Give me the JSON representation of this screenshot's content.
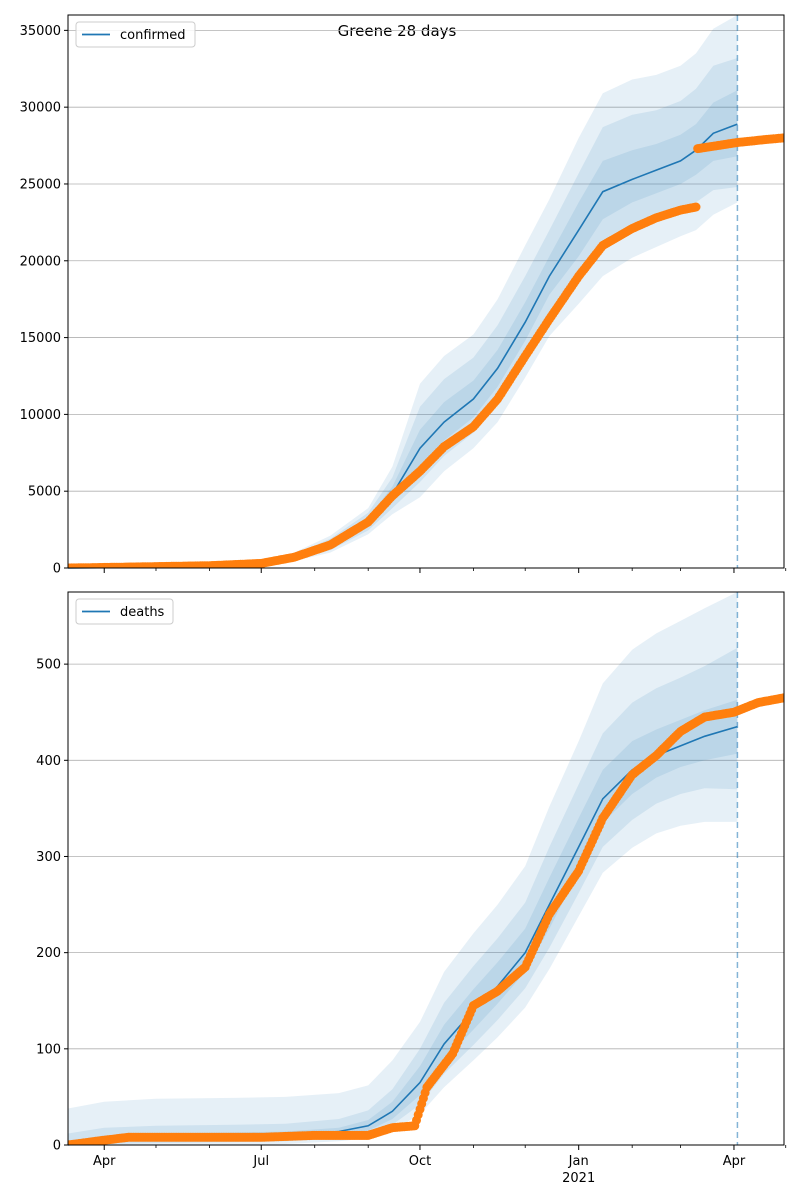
{
  "suptitle": "Greene 28 days",
  "colors": {
    "forecast": "#1f77b4",
    "observed": "#ff7f0e",
    "band": "#1f77b4",
    "grid": "#b0b0b0",
    "forecast_start": "#1f77b4"
  },
  "x_axis": {
    "start": "2020-03-11",
    "end": "2021-04-30",
    "major_ticks": [
      {
        "date": "2020-04-01",
        "label": "Apr",
        "sublabel": ""
      },
      {
        "date": "2020-07-01",
        "label": "Jul",
        "sublabel": ""
      },
      {
        "date": "2020-10-01",
        "label": "Oct",
        "sublabel": ""
      },
      {
        "date": "2021-01-01",
        "label": "Jan",
        "sublabel": "2021"
      },
      {
        "date": "2021-04-01",
        "label": "Apr",
        "sublabel": ""
      }
    ],
    "minor_ticks": [
      "2020-05-01",
      "2020-06-01",
      "2020-08-01",
      "2020-09-01",
      "2020-11-01",
      "2020-12-01",
      "2021-02-01",
      "2021-03-01",
      "2021-05-01"
    ],
    "forecast_start": "2021-04-03"
  },
  "chart_data": [
    {
      "type": "line",
      "panel": "confirmed",
      "legend": "confirmed",
      "legend_position": "top-left",
      "grid": "horizontal",
      "ylim": [
        0,
        36000
      ],
      "yticks": [
        0,
        5000,
        10000,
        15000,
        20000,
        25000,
        30000,
        35000
      ],
      "forecast": {
        "x": [
          "2020-03-11",
          "2020-05-01",
          "2020-06-15",
          "2020-07-01",
          "2020-07-20",
          "2020-08-10",
          "2020-09-01",
          "2020-09-15",
          "2020-10-01",
          "2020-10-15",
          "2020-11-01",
          "2020-11-15",
          "2020-12-01",
          "2020-12-15",
          "2021-01-01",
          "2021-01-15",
          "2021-02-01",
          "2021-02-15",
          "2021-03-01",
          "2021-03-10",
          "2021-03-20",
          "2021-04-03"
        ],
        "mean": [
          0,
          50,
          150,
          300,
          700,
          1500,
          3000,
          4800,
          7800,
          9500,
          11000,
          13000,
          16000,
          19000,
          22000,
          24500,
          25300,
          25900,
          26500,
          27200,
          28300,
          28900
        ],
        "band_50_low": [
          0,
          20,
          100,
          250,
          600,
          1300,
          2700,
          4300,
          6600,
          8300,
          9800,
          11800,
          14800,
          17800,
          20300,
          22700,
          23800,
          24400,
          25000,
          25600,
          26500,
          26800
        ],
        "band_50_high": [
          0,
          80,
          200,
          350,
          800,
          1700,
          3300,
          5300,
          9000,
          10800,
          12200,
          14200,
          17300,
          20300,
          23800,
          26500,
          27200,
          27600,
          28200,
          28900,
          30300,
          31100
        ],
        "band_80_low": [
          0,
          10,
          70,
          200,
          520,
          1150,
          2450,
          3900,
          5600,
          7300,
          8800,
          10600,
          13600,
          16500,
          18800,
          20900,
          22000,
          22600,
          23300,
          23800,
          24600,
          24800
        ],
        "band_80_high": [
          0,
          110,
          250,
          400,
          900,
          1900,
          3600,
          5900,
          10500,
          12300,
          13700,
          15800,
          19000,
          22000,
          25700,
          28700,
          29500,
          29800,
          30400,
          31200,
          32700,
          33200
        ],
        "band_95_low": [
          0,
          0,
          40,
          150,
          450,
          1000,
          2200,
          3500,
          4600,
          6300,
          7800,
          9500,
          12400,
          15100,
          17200,
          19000,
          20200,
          20900,
          21600,
          22000,
          23000,
          23800
        ],
        "band_95_high": [
          0,
          150,
          300,
          450,
          1000,
          2100,
          3900,
          6600,
          12000,
          13800,
          15200,
          17500,
          21000,
          24000,
          28000,
          30900,
          31800,
          32100,
          32700,
          33500,
          35100,
          36000
        ]
      },
      "observed": {
        "x": [
          "2020-03-11",
          "2020-04-15",
          "2020-06-01",
          "2020-07-01",
          "2020-07-20",
          "2020-08-10",
          "2020-09-01",
          "2020-09-15",
          "2020-10-01",
          "2020-10-15",
          "2020-11-01",
          "2020-11-15",
          "2020-12-01",
          "2020-12-15",
          "2021-01-01",
          "2021-01-15",
          "2021-02-01",
          "2021-02-15",
          "2021-03-01",
          "2021-03-10",
          "2021-03-11",
          "2021-04-03",
          "2021-04-20",
          "2021-04-30"
        ],
        "y": [
          0,
          60,
          150,
          300,
          700,
          1500,
          3000,
          4700,
          6300,
          7900,
          9200,
          11000,
          13800,
          16200,
          19000,
          21000,
          22100,
          22800,
          23300,
          23500,
          27300,
          27700,
          27900,
          28000
        ]
      }
    },
    {
      "type": "line",
      "panel": "deaths",
      "legend": "deaths",
      "legend_position": "top-left",
      "grid": "horizontal",
      "ylim": [
        0,
        575
      ],
      "yticks": [
        0,
        100,
        200,
        300,
        400,
        500
      ],
      "forecast": {
        "x": [
          "2020-03-11",
          "2020-04-01",
          "2020-05-01",
          "2020-06-15",
          "2020-07-15",
          "2020-08-15",
          "2020-09-01",
          "2020-09-15",
          "2020-10-01",
          "2020-10-15",
          "2020-11-01",
          "2020-11-15",
          "2020-12-01",
          "2020-12-15",
          "2021-01-01",
          "2021-01-15",
          "2021-02-01",
          "2021-02-15",
          "2021-03-01",
          "2021-03-15",
          "2021-04-03"
        ],
        "mean": [
          0,
          6,
          8,
          9,
          10,
          14,
          20,
          35,
          65,
          105,
          140,
          165,
          200,
          250,
          310,
          360,
          390,
          405,
          415,
          425,
          435
        ],
        "band_50_low": [
          0,
          3,
          5,
          6,
          7,
          10,
          15,
          27,
          52,
          88,
          120,
          147,
          180,
          225,
          285,
          335,
          365,
          382,
          393,
          400,
          407
        ],
        "band_50_high": [
          4,
          10,
          12,
          13,
          14,
          18,
          26,
          45,
          82,
          125,
          162,
          190,
          225,
          278,
          340,
          390,
          420,
          432,
          442,
          452,
          463
        ],
        "band_80_low": [
          0,
          1,
          2,
          3,
          4,
          7,
          11,
          21,
          42,
          74,
          104,
          130,
          163,
          205,
          262,
          310,
          338,
          355,
          365,
          371,
          370
        ],
        "band_80_high": [
          12,
          18,
          20,
          21,
          22,
          27,
          36,
          58,
          100,
          148,
          186,
          215,
          252,
          310,
          375,
          428,
          460,
          475,
          486,
          498,
          517
        ],
        "band_95_low": [
          0,
          0,
          0,
          0,
          1,
          4,
          7,
          15,
          32,
          60,
          88,
          112,
          143,
          183,
          238,
          283,
          309,
          324,
          332,
          336,
          336
        ],
        "band_95_high": [
          38,
          45,
          48,
          49,
          50,
          54,
          62,
          88,
          128,
          180,
          220,
          250,
          290,
          352,
          420,
          480,
          515,
          532,
          545,
          558,
          575
        ]
      },
      "observed": {
        "x": [
          "2020-03-11",
          "2020-04-01",
          "2020-04-15",
          "2020-06-01",
          "2020-07-01",
          "2020-08-01",
          "2020-09-01",
          "2020-09-15",
          "2020-09-28",
          "2020-10-05",
          "2020-10-20",
          "2020-11-01",
          "2020-11-15",
          "2020-12-01",
          "2020-12-15",
          "2021-01-01",
          "2021-01-15",
          "2021-02-01",
          "2021-02-15",
          "2021-03-01",
          "2021-03-15",
          "2021-04-01",
          "2021-04-15",
          "2021-04-30"
        ],
        "y": [
          0,
          5,
          8,
          8,
          8,
          10,
          10,
          18,
          20,
          60,
          95,
          145,
          160,
          185,
          240,
          285,
          340,
          385,
          405,
          430,
          445,
          450,
          460,
          465
        ]
      }
    }
  ]
}
